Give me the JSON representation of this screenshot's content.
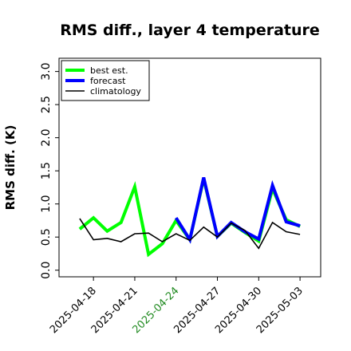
{
  "chart_data": {
    "type": "line",
    "title": "RMS diff., layer 4 temperature",
    "xlabel": "",
    "ylabel": "RMS diff. (K)",
    "ylim": [
      -0.1,
      3.2
    ],
    "yticks": [
      0.0,
      0.5,
      1.0,
      1.5,
      2.0,
      2.5,
      3.0
    ],
    "ytick_labels": [
      "0.0",
      "0.5",
      "1.0",
      "1.5",
      "2.0",
      "2.5",
      "3.0"
    ],
    "xlim": [
      "2025-04-15T12:00",
      "2025-05-04T12:00"
    ],
    "xticks": [
      "2025-04-18",
      "2025-04-21",
      "2025-04-24",
      "2025-04-27",
      "2025-04-30",
      "2025-05-03"
    ],
    "xtick_labels": [
      "2025-04-18",
      "2025-04-21",
      "2025-04-24",
      "2025-04-27",
      "2025-04-30",
      "2025-05-03"
    ],
    "highlight_tick": "2025-04-24",
    "highlight_color": "#228b22",
    "legend_position": "top-left",
    "grid": false,
    "series": [
      {
        "name": "best est.",
        "color": "#00ff00",
        "width": 4,
        "x": [
          "2025-04-17",
          "2025-04-18",
          "2025-04-19",
          "2025-04-20",
          "2025-04-21",
          "2025-04-22",
          "2025-04-23",
          "2025-04-24",
          "2025-04-25",
          "2025-04-26",
          "2025-04-27",
          "2025-04-28",
          "2025-04-29",
          "2025-04-30",
          "2025-05-01",
          "2025-05-02",
          "2025-05-03"
        ],
        "values": [
          0.62,
          0.79,
          0.59,
          0.72,
          1.26,
          0.24,
          0.4,
          0.75,
          0.46,
          1.38,
          0.51,
          0.71,
          0.57,
          0.44,
          1.23,
          0.76,
          0.66
        ]
      },
      {
        "name": "forecast",
        "color": "#0000ff",
        "width": 4,
        "x": [
          "2025-04-24",
          "2025-04-25",
          "2025-04-26",
          "2025-04-27",
          "2025-04-28",
          "2025-04-29",
          "2025-04-30",
          "2025-05-01",
          "2025-05-02",
          "2025-05-03"
        ],
        "values": [
          0.79,
          0.46,
          1.4,
          0.51,
          0.72,
          0.58,
          0.47,
          1.28,
          0.73,
          0.67
        ]
      },
      {
        "name": "climatology",
        "color": "#000000",
        "width": 1.6,
        "x": [
          "2025-04-17",
          "2025-04-18",
          "2025-04-19",
          "2025-04-20",
          "2025-04-21",
          "2025-04-22",
          "2025-04-23",
          "2025-04-24",
          "2025-04-25",
          "2025-04-26",
          "2025-04-27",
          "2025-04-28",
          "2025-04-29",
          "2025-04-30",
          "2025-05-01",
          "2025-05-02",
          "2025-05-03"
        ],
        "values": [
          0.78,
          0.46,
          0.48,
          0.43,
          0.55,
          0.56,
          0.43,
          0.55,
          0.45,
          0.65,
          0.5,
          0.71,
          0.6,
          0.33,
          0.72,
          0.58,
          0.54
        ]
      }
    ]
  }
}
